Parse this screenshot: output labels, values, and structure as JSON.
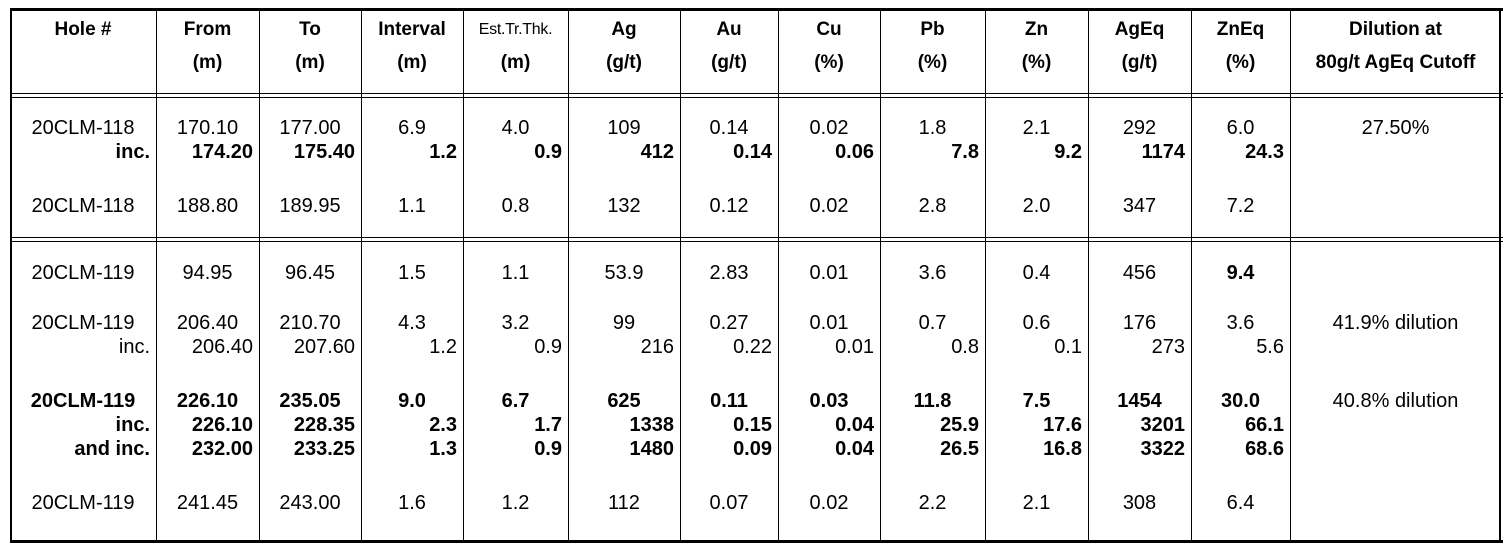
{
  "columns": [
    {
      "line1": "Hole #",
      "line2": ""
    },
    {
      "line1": "From",
      "line2": "(m)"
    },
    {
      "line1": "To",
      "line2": "(m)"
    },
    {
      "line1": "Interval",
      "line2": "(m)"
    },
    {
      "line1": "Est.Tr.Thk.",
      "line2": "(m)"
    },
    {
      "line1": "Ag",
      "line2": "(g/t)"
    },
    {
      "line1": "Au",
      "line2": "(g/t)"
    },
    {
      "line1": "Cu",
      "line2": "(%)"
    },
    {
      "line1": "Pb",
      "line2": "(%)"
    },
    {
      "line1": "Zn",
      "line2": "(%)"
    },
    {
      "line1": "AgEq",
      "line2": "(g/t)"
    },
    {
      "line1": "ZnEq",
      "line2": "(%)"
    },
    {
      "line1": "Dilution at",
      "line2": "80g/t AgEq Cutoff"
    }
  ],
  "rows": [
    {
      "hole": "20CLM-118",
      "type": "main",
      "bold": false,
      "values": [
        "170.10",
        "177.00",
        "6.9",
        "4.0",
        "109",
        "0.14",
        "0.02",
        "1.8",
        "2.1",
        "292",
        "6.0"
      ],
      "dilution": "27.50%"
    },
    {
      "hole": "inc.",
      "type": "inc",
      "bold": true,
      "values": [
        "174.20",
        "175.40",
        "1.2",
        "0.9",
        "412",
        "0.14",
        "0.06",
        "7.8",
        "9.2",
        "1174",
        "24.3"
      ],
      "dilution": ""
    },
    {
      "hole": "20CLM-118",
      "type": "main",
      "bold": false,
      "values": [
        "188.80",
        "189.95",
        "1.1",
        "0.8",
        "132",
        "0.12",
        "0.02",
        "2.8",
        "2.0",
        "347",
        "7.2"
      ],
      "dilution": ""
    },
    {
      "hole": "20CLM-119",
      "type": "main",
      "bold": false,
      "values": [
        "94.95",
        "96.45",
        "1.5",
        "1.1",
        "53.9",
        "2.83",
        "0.01",
        "3.6",
        "0.4",
        "456",
        "9.4"
      ],
      "dilution": "",
      "bold_cols": [
        10
      ]
    },
    {
      "hole": "20CLM-119",
      "type": "main",
      "bold": false,
      "values": [
        "206.40",
        "210.70",
        "4.3",
        "3.2",
        "99",
        "0.27",
        "0.01",
        "0.7",
        "0.6",
        "176",
        "3.6"
      ],
      "dilution": "41.9% dilution"
    },
    {
      "hole": "inc.",
      "type": "inc",
      "bold": false,
      "values": [
        "206.40",
        "207.60",
        "1.2",
        "0.9",
        "216",
        "0.22",
        "0.01",
        "0.8",
        "0.1",
        "273",
        "5.6"
      ],
      "dilution": ""
    },
    {
      "hole": "20CLM-119",
      "type": "main",
      "bold": true,
      "values": [
        "226.10",
        "235.05",
        "9.0",
        "6.7",
        "625",
        "0.11",
        "0.03",
        "11.8",
        "7.5",
        "1454",
        "30.0"
      ],
      "dilution": "40.8% dilution"
    },
    {
      "hole": "inc.",
      "type": "inc",
      "bold": true,
      "values": [
        "226.10",
        "228.35",
        "2.3",
        "1.7",
        "1338",
        "0.15",
        "0.04",
        "25.9",
        "17.6",
        "3201",
        "66.1"
      ],
      "dilution": ""
    },
    {
      "hole": "and inc.",
      "type": "inc",
      "bold": true,
      "values": [
        "232.00",
        "233.25",
        "1.3",
        "0.9",
        "1480",
        "0.09",
        "0.04",
        "26.5",
        "16.8",
        "3322",
        "68.6"
      ],
      "dilution": ""
    },
    {
      "hole": "20CLM-119",
      "type": "main",
      "bold": false,
      "values": [
        "241.45",
        "243.00",
        "1.6",
        "1.2",
        "112",
        "0.07",
        "0.02",
        "2.2",
        "2.1",
        "308",
        "6.4"
      ],
      "dilution": ""
    }
  ]
}
